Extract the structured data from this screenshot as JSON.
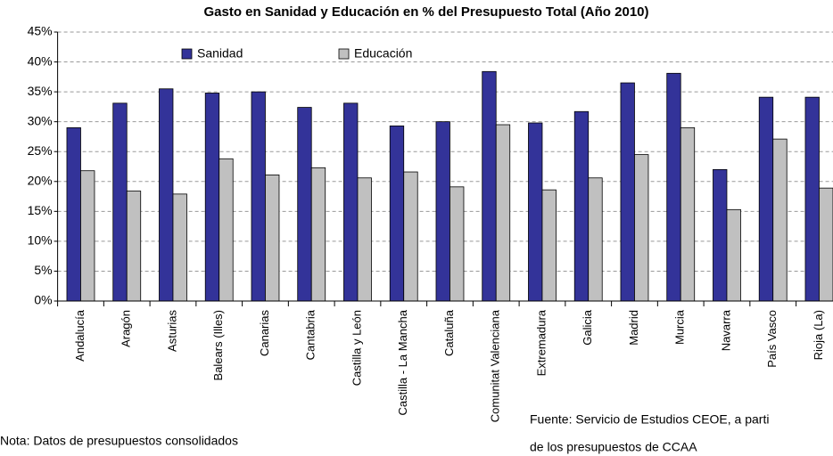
{
  "chart_data": {
    "type": "bar",
    "title": "Gasto en Sanidad y Educación en % del Presupuesto Total (Año 2010)",
    "categories": [
      "Andalucía",
      "Aragón",
      "Asturias",
      "Balears (Illes)",
      "Canarias",
      "Cantabria",
      "Castilla y León",
      "Castilla - La Mancha",
      "Cataluña",
      "Comunitat Valenciana",
      "Extremadura",
      "Galicia",
      "Madrid",
      "Murcia",
      "Navarra",
      "País Vasco",
      "Rioja (La)"
    ],
    "series": [
      {
        "name": "Sanidad",
        "color": "#333399",
        "values": [
          29.0,
          33.1,
          35.5,
          34.8,
          35.0,
          32.4,
          33.1,
          29.3,
          30.0,
          38.4,
          29.8,
          31.7,
          36.5,
          38.1,
          22.0,
          34.1,
          34.1
        ]
      },
      {
        "name": "Educación",
        "color": "#c0c0c0",
        "values": [
          21.8,
          18.4,
          17.9,
          23.8,
          21.1,
          22.3,
          20.6,
          21.6,
          19.1,
          29.5,
          18.6,
          20.6,
          24.5,
          29.0,
          15.3,
          27.1,
          18.9
        ]
      }
    ],
    "ylim": [
      0,
      45
    ],
    "yticks": [
      {
        "value": 0,
        "label": "0%"
      },
      {
        "value": 5,
        "label": "5%"
      },
      {
        "value": 10,
        "label": "10%"
      },
      {
        "value": 15,
        "label": "15%"
      },
      {
        "value": 20,
        "label": "20%"
      },
      {
        "value": 25,
        "label": "25%"
      },
      {
        "value": 30,
        "label": "30%"
      },
      {
        "value": 35,
        "label": "35%"
      },
      {
        "value": 40,
        "label": "40%"
      },
      {
        "value": 45,
        "label": "45%"
      }
    ],
    "grid": true,
    "legend": "top",
    "annotations": [
      "Nota: Datos de presupuestos consolidados",
      "Fuente: Servicio de Estudios CEOE, a parti",
      "de los presupuestos de CCAA"
    ]
  }
}
